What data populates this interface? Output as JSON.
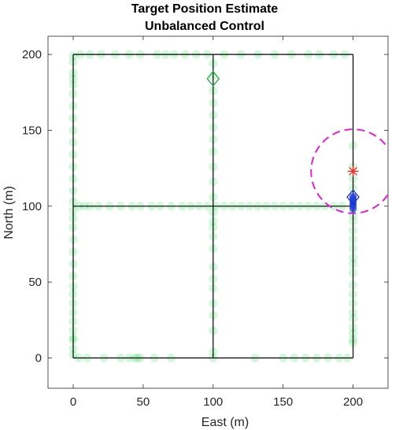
{
  "chart_data": {
    "type": "scatter",
    "title": "Target Position Estimate",
    "subtitle": "Unbalanced Control",
    "xlabel": "East (m)",
    "ylabel": "North (m)",
    "xlim": [
      -18,
      225
    ],
    "ylim": [
      -20,
      212
    ],
    "xticks": [
      0,
      50,
      100,
      150,
      200
    ],
    "yticks": [
      0,
      50,
      100,
      150,
      200
    ],
    "grid": false,
    "road_network": {
      "color": "#000000",
      "segments": [
        [
          [
            0,
            0
          ],
          [
            200,
            0
          ]
        ],
        [
          [
            0,
            100
          ],
          [
            200,
            100
          ]
        ],
        [
          [
            0,
            200
          ],
          [
            200,
            200
          ]
        ],
        [
          [
            0,
            0
          ],
          [
            0,
            200
          ]
        ],
        [
          [
            100,
            0
          ],
          [
            100,
            200
          ]
        ],
        [
          [
            200,
            0
          ],
          [
            200,
            200
          ]
        ]
      ]
    },
    "particles": {
      "color": "#33e060",
      "points": [
        [
          0,
          2
        ],
        [
          0,
          6
        ],
        [
          0,
          12
        ],
        [
          0,
          13
        ],
        [
          0,
          18
        ],
        [
          0,
          24
        ],
        [
          0,
          30
        ],
        [
          0,
          36
        ],
        [
          0,
          42
        ],
        [
          0,
          47
        ],
        [
          0,
          54
        ],
        [
          0,
          62
        ],
        [
          0,
          70
        ],
        [
          0,
          78
        ],
        [
          0,
          86
        ],
        [
          0,
          92
        ],
        [
          0,
          97
        ],
        [
          0,
          103
        ],
        [
          0,
          110
        ],
        [
          0,
          118
        ],
        [
          0,
          126
        ],
        [
          0,
          134
        ],
        [
          0,
          142
        ],
        [
          0,
          150
        ],
        [
          0,
          158
        ],
        [
          0,
          166
        ],
        [
          0,
          174
        ],
        [
          0,
          180
        ],
        [
          0,
          184
        ],
        [
          0,
          188
        ],
        [
          0,
          195
        ],
        [
          0,
          199
        ],
        [
          5,
          200
        ],
        [
          12,
          200
        ],
        [
          20,
          200
        ],
        [
          30,
          200
        ],
        [
          40,
          200
        ],
        [
          48,
          200
        ],
        [
          60,
          200
        ],
        [
          66,
          200
        ],
        [
          72,
          200
        ],
        [
          80,
          200
        ],
        [
          88,
          200
        ],
        [
          96,
          200
        ],
        [
          108,
          200
        ],
        [
          120,
          200
        ],
        [
          132,
          200
        ],
        [
          144,
          200
        ],
        [
          156,
          200
        ],
        [
          168,
          200
        ],
        [
          176,
          200
        ],
        [
          186,
          200
        ],
        [
          194,
          200
        ],
        [
          4,
          0
        ],
        [
          10,
          0
        ],
        [
          22,
          0
        ],
        [
          34,
          0
        ],
        [
          40,
          0
        ],
        [
          44,
          0
        ],
        [
          46,
          0
        ],
        [
          48,
          0
        ],
        [
          58,
          0
        ],
        [
          70,
          0
        ],
        [
          100,
          0
        ],
        [
          130,
          0
        ],
        [
          150,
          0
        ],
        [
          158,
          0
        ],
        [
          166,
          0
        ],
        [
          174,
          0
        ],
        [
          182,
          0
        ],
        [
          190,
          0
        ],
        [
          196,
          0
        ],
        [
          4,
          100
        ],
        [
          8,
          100
        ],
        [
          12,
          100
        ],
        [
          18,
          100
        ],
        [
          26,
          100
        ],
        [
          34,
          100
        ],
        [
          42,
          100
        ],
        [
          48,
          100
        ],
        [
          56,
          100
        ],
        [
          62,
          100
        ],
        [
          70,
          100
        ],
        [
          78,
          100
        ],
        [
          84,
          100
        ],
        [
          90,
          100
        ],
        [
          96,
          100
        ],
        [
          102,
          100
        ],
        [
          108,
          100
        ],
        [
          114,
          100
        ],
        [
          120,
          100
        ],
        [
          126,
          100
        ],
        [
          132,
          100
        ],
        [
          138,
          100
        ],
        [
          144,
          100
        ],
        [
          150,
          100
        ],
        [
          156,
          100
        ],
        [
          162,
          100
        ],
        [
          168,
          100
        ],
        [
          174,
          100
        ],
        [
          180,
          100
        ],
        [
          186,
          100
        ],
        [
          192,
          100
        ],
        [
          100,
          4
        ],
        [
          100,
          18
        ],
        [
          100,
          28
        ],
        [
          100,
          36
        ],
        [
          100,
          46
        ],
        [
          100,
          52
        ],
        [
          100,
          60
        ],
        [
          100,
          72
        ],
        [
          100,
          80
        ],
        [
          100,
          86
        ],
        [
          100,
          90
        ],
        [
          100,
          96
        ],
        [
          100,
          106
        ],
        [
          100,
          116
        ],
        [
          100,
          126
        ],
        [
          100,
          136
        ],
        [
          100,
          144
        ],
        [
          100,
          152
        ],
        [
          100,
          160
        ],
        [
          100,
          168
        ],
        [
          100,
          176
        ],
        [
          100,
          186
        ],
        [
          100,
          194
        ],
        [
          200,
          10
        ],
        [
          200,
          12
        ],
        [
          200,
          16
        ],
        [
          200,
          20
        ],
        [
          200,
          26
        ],
        [
          200,
          30
        ],
        [
          200,
          36
        ],
        [
          200,
          42
        ],
        [
          200,
          48
        ],
        [
          200,
          56
        ],
        [
          200,
          62
        ],
        [
          200,
          66
        ],
        [
          200,
          72
        ],
        [
          200,
          78
        ],
        [
          200,
          84
        ],
        [
          200,
          90
        ],
        [
          200,
          94
        ],
        [
          200,
          98
        ],
        [
          200,
          112
        ],
        [
          200,
          118
        ],
        [
          200,
          126
        ],
        [
          200,
          140
        ]
      ]
    },
    "estimates": {
      "color": "#1f3fd6",
      "points": [
        [
          200,
          98
        ],
        [
          200,
          99
        ],
        [
          200,
          100
        ],
        [
          200,
          101
        ],
        [
          200,
          101.5
        ],
        [
          200,
          102
        ],
        [
          200,
          103
        ],
        [
          200,
          104
        ],
        [
          200,
          104.5
        ],
        [
          200,
          105
        ],
        [
          200,
          106
        ],
        [
          200,
          106.5
        ]
      ]
    },
    "markers": [
      {
        "kind": "diamond",
        "x": 100,
        "y": 184,
        "color": "#1db33b"
      },
      {
        "kind": "diamond",
        "x": 200,
        "y": 106,
        "color": "#1a2fd6"
      },
      {
        "kind": "asterisk",
        "x": 200,
        "y": 123,
        "color": "#ff2020"
      }
    ],
    "uncertainty_circle": {
      "center": [
        200,
        123
      ],
      "radius": 30,
      "color": "#e020d8",
      "dashed": true
    }
  }
}
